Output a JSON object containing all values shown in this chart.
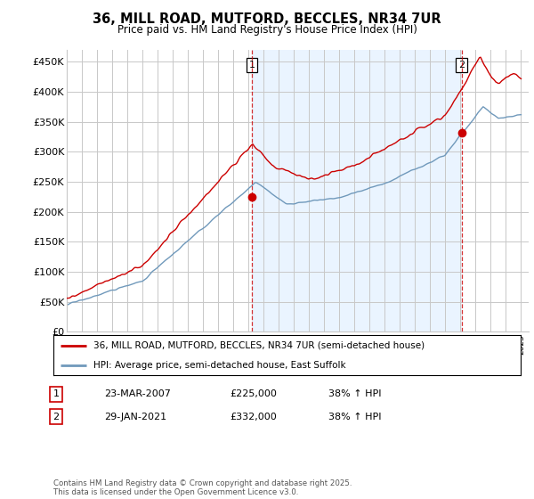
{
  "title_line1": "36, MILL ROAD, MUTFORD, BECCLES, NR34 7UR",
  "title_line2": "Price paid vs. HM Land Registry's House Price Index (HPI)",
  "ylabel_ticks": [
    "£0",
    "£50K",
    "£100K",
    "£150K",
    "£200K",
    "£250K",
    "£300K",
    "£350K",
    "£400K",
    "£450K"
  ],
  "ytick_values": [
    0,
    50000,
    100000,
    150000,
    200000,
    250000,
    300000,
    350000,
    400000,
    450000
  ],
  "ylim": [
    0,
    470000
  ],
  "marker1_date": 2007.22,
  "marker1_price": 225000,
  "marker1_price_str": "£225,000",
  "marker1_pct": "38% ↑ HPI",
  "marker1_datestr": "23-MAR-2007",
  "marker2_date": 2021.08,
  "marker2_price": 332000,
  "marker2_price_str": "£332,000",
  "marker2_pct": "38% ↑ HPI",
  "marker2_datestr": "29-JAN-2021",
  "legend_line1": "36, MILL ROAD, MUTFORD, BECCLES, NR34 7UR (semi-detached house)",
  "legend_line2": "HPI: Average price, semi-detached house, East Suffolk",
  "footer": "Contains HM Land Registry data © Crown copyright and database right 2025.\nThis data is licensed under the Open Government Licence v3.0.",
  "red_color": "#cc0000",
  "blue_color": "#7099bb",
  "fill_color": "#ddeeff",
  "background_color": "#ffffff",
  "grid_color": "#c8c8c8"
}
